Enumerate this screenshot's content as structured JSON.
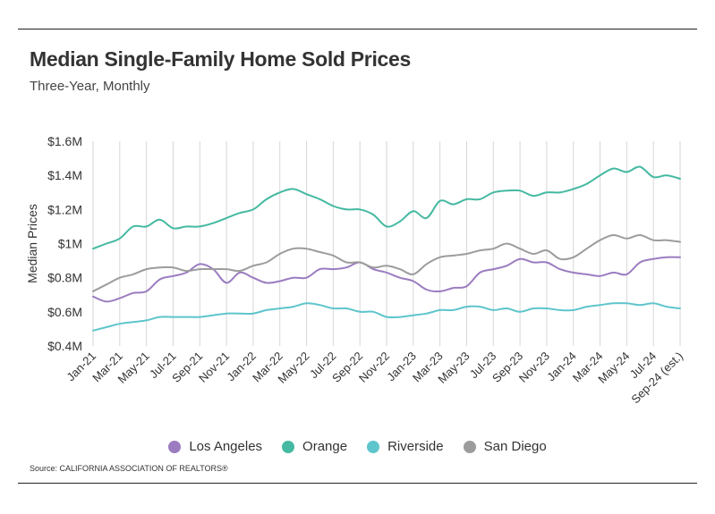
{
  "header": {
    "title": "Median Single-Family Home Sold Prices",
    "subtitle": "Three-Year, Monthly"
  },
  "footer": {
    "source": "Source:  CALIFORNIA ASSOCIATION OF REALTORS®"
  },
  "chart_data": {
    "type": "line",
    "title": "Median Single-Family Home Sold Prices",
    "subtitle": "Three-Year, Monthly",
    "xlabel": "",
    "ylabel": "Median Prices",
    "ylim": [
      0.4,
      1.6
    ],
    "unit": "M",
    "yticks": [
      0.4,
      0.6,
      0.8,
      1.0,
      1.2,
      1.4,
      1.6
    ],
    "ytick_labels": [
      "$0.4M",
      "$0.6M",
      "$0.8M",
      "$1M",
      "$1.2M",
      "$1.4M",
      "$1.6M"
    ],
    "x": [
      "Jan-21",
      "Feb-21",
      "Mar-21",
      "Apr-21",
      "May-21",
      "Jun-21",
      "Jul-21",
      "Aug-21",
      "Sep-21",
      "Oct-21",
      "Nov-21",
      "Dec-21",
      "Jan-22",
      "Feb-22",
      "Mar-22",
      "Apr-22",
      "May-22",
      "Jun-22",
      "Jul-22",
      "Aug-22",
      "Sep-22",
      "Oct-22",
      "Nov-22",
      "Dec-22",
      "Jan-23",
      "Feb-23",
      "Mar-23",
      "Apr-23",
      "May-23",
      "Jun-23",
      "Jul-23",
      "Aug-23",
      "Sep-23",
      "Oct-23",
      "Nov-23",
      "Dec-23",
      "Jan-24",
      "Feb-24",
      "Mar-24",
      "Apr-24",
      "May-24",
      "Jun-24",
      "Jul-24",
      "Aug-24",
      "Sep-24 (est.)"
    ],
    "xtick_labels": [
      "Jan-21",
      "Mar-21",
      "May-21",
      "Jul-21",
      "Sep-21",
      "Nov-21",
      "Jan-22",
      "Mar-22",
      "May-22",
      "Jul-22",
      "Sep-22",
      "Nov-22",
      "Jan-23",
      "Mar-23",
      "May-23",
      "Jul-23",
      "Sep-23",
      "Nov-23",
      "Jan-24",
      "Mar-24",
      "May-24",
      "Jul-24",
      "Sep-24 (est.)"
    ],
    "grid": "vertical",
    "legend_position": "bottom",
    "series": [
      {
        "name": "Los Angeles",
        "color": "#9b7cc0",
        "values": [
          0.69,
          0.66,
          0.68,
          0.71,
          0.72,
          0.79,
          0.81,
          0.83,
          0.88,
          0.85,
          0.77,
          0.83,
          0.8,
          0.77,
          0.78,
          0.8,
          0.8,
          0.85,
          0.85,
          0.86,
          0.89,
          0.85,
          0.83,
          0.8,
          0.78,
          0.73,
          0.72,
          0.74,
          0.75,
          0.83,
          0.85,
          0.87,
          0.91,
          0.89,
          0.89,
          0.85,
          0.83,
          0.82,
          0.81,
          0.83,
          0.82,
          0.89,
          0.91,
          0.92,
          0.92
        ]
      },
      {
        "name": "Orange",
        "color": "#45b9a1",
        "values": [
          0.97,
          1.0,
          1.03,
          1.1,
          1.1,
          1.14,
          1.09,
          1.1,
          1.1,
          1.12,
          1.15,
          1.18,
          1.2,
          1.26,
          1.3,
          1.32,
          1.29,
          1.26,
          1.22,
          1.2,
          1.2,
          1.17,
          1.1,
          1.13,
          1.19,
          1.15,
          1.25,
          1.23,
          1.26,
          1.26,
          1.3,
          1.31,
          1.31,
          1.28,
          1.3,
          1.3,
          1.32,
          1.35,
          1.4,
          1.44,
          1.42,
          1.45,
          1.39,
          1.4,
          1.38
        ]
      },
      {
        "name": "Riverside",
        "color": "#5ec5cc",
        "values": [
          0.49,
          0.51,
          0.53,
          0.54,
          0.55,
          0.57,
          0.57,
          0.57,
          0.57,
          0.58,
          0.59,
          0.59,
          0.59,
          0.61,
          0.62,
          0.63,
          0.65,
          0.64,
          0.62,
          0.62,
          0.6,
          0.6,
          0.57,
          0.57,
          0.58,
          0.59,
          0.61,
          0.61,
          0.63,
          0.63,
          0.61,
          0.62,
          0.6,
          0.62,
          0.62,
          0.61,
          0.61,
          0.63,
          0.64,
          0.65,
          0.65,
          0.64,
          0.65,
          0.63,
          0.62
        ]
      },
      {
        "name": "San Diego",
        "color": "#9c9c9c",
        "values": [
          0.72,
          0.76,
          0.8,
          0.82,
          0.85,
          0.86,
          0.86,
          0.84,
          0.85,
          0.85,
          0.85,
          0.84,
          0.87,
          0.89,
          0.94,
          0.97,
          0.97,
          0.95,
          0.93,
          0.89,
          0.89,
          0.86,
          0.87,
          0.85,
          0.82,
          0.88,
          0.92,
          0.93,
          0.94,
          0.96,
          0.97,
          1.0,
          0.97,
          0.94,
          0.96,
          0.91,
          0.92,
          0.97,
          1.02,
          1.05,
          1.03,
          1.05,
          1.02,
          1.02,
          1.01
        ]
      }
    ]
  }
}
